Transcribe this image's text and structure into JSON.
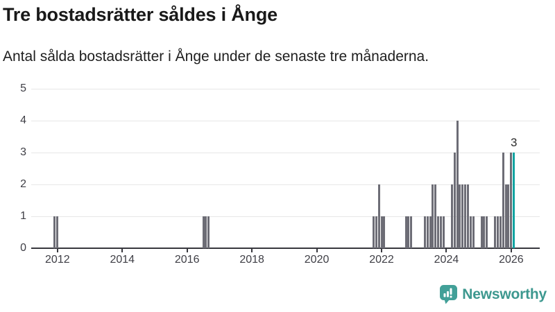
{
  "chart_data": {
    "type": "bar",
    "title": "Tre bostadsrätter såldes i Ånge",
    "subtitle": "Antal sålda bostadsrätter i Ånge under de senaste tre månaderna.",
    "xlabel": "",
    "ylabel": "",
    "ylim": [
      0,
      5
    ],
    "y_ticks": [
      0,
      1,
      2,
      3,
      4,
      5
    ],
    "x_ticks": [
      "2012",
      "2014",
      "2016",
      "2018",
      "2020",
      "2022",
      "2024",
      "2026"
    ],
    "x_range_years": [
      2011.19,
      2026.88
    ],
    "grid": "horizontal",
    "legend": "none",
    "bar_color": "#6d6d76",
    "highlight_color": "#0da3a1",
    "highlight_month": "2026-02",
    "annotation": {
      "label": "3",
      "month": "2026-02",
      "value": 3
    },
    "series": [
      {
        "name": "Antal sålda bostadsrätter",
        "points": [
          [
            "2011-12",
            1
          ],
          [
            "2012-01",
            1
          ],
          [
            "2016-07",
            1
          ],
          [
            "2016-08",
            1
          ],
          [
            "2016-09",
            1
          ],
          [
            "2021-10",
            1
          ],
          [
            "2021-11",
            1
          ],
          [
            "2021-12",
            2
          ],
          [
            "2022-01",
            1
          ],
          [
            "2022-02",
            1
          ],
          [
            "2022-10",
            1
          ],
          [
            "2022-11",
            1
          ],
          [
            "2022-12",
            1
          ],
          [
            "2023-05",
            1
          ],
          [
            "2023-06",
            1
          ],
          [
            "2023-07",
            1
          ],
          [
            "2023-08",
            2
          ],
          [
            "2023-09",
            2
          ],
          [
            "2023-10",
            1
          ],
          [
            "2023-11",
            1
          ],
          [
            "2023-12",
            1
          ],
          [
            "2024-03",
            2
          ],
          [
            "2024-04",
            3
          ],
          [
            "2024-05",
            4
          ],
          [
            "2024-06",
            2
          ],
          [
            "2024-07",
            2
          ],
          [
            "2024-08",
            2
          ],
          [
            "2024-09",
            2
          ],
          [
            "2024-10",
            1
          ],
          [
            "2024-11",
            1
          ],
          [
            "2025-02",
            1
          ],
          [
            "2025-03",
            1
          ],
          [
            "2025-04",
            1
          ],
          [
            "2025-07",
            1
          ],
          [
            "2025-08",
            1
          ],
          [
            "2025-09",
            1
          ],
          [
            "2025-10",
            3
          ],
          [
            "2025-11",
            2
          ],
          [
            "2025-12",
            2
          ],
          [
            "2026-01",
            3
          ],
          [
            "2026-02",
            3
          ]
        ]
      }
    ]
  },
  "footer": {
    "brand": "Newsworthy",
    "brand_color": "#3d988f",
    "icon_color": "#42a098"
  }
}
